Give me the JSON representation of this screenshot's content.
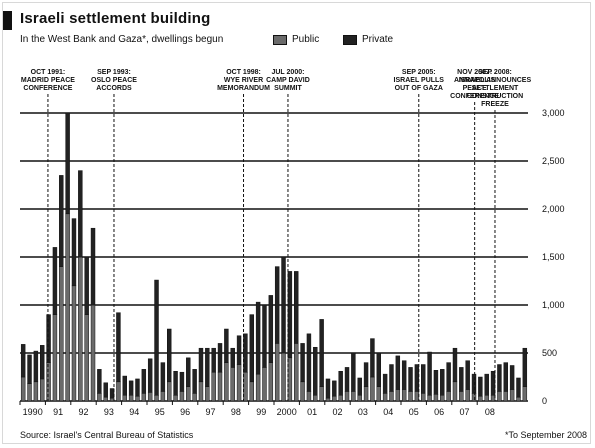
{
  "header": {
    "title": "Israeli settlement building",
    "subtitle": "In the West Bank and Gaza*, dwellings begun",
    "legend_public": "Public",
    "legend_private": "Private"
  },
  "footer": {
    "source": "Source: Israel's Central Bureau of Statistics",
    "footnote": "*To September 2008"
  },
  "chart_data": {
    "type": "bar",
    "title": "Israeli settlement building",
    "subtitle": "In the West Bank and Gaza*, dwellings begun",
    "xlabel": "",
    "ylabel": "",
    "ylim": [
      0,
      3000
    ],
    "yticks": [
      0,
      500,
      1000,
      1500,
      2000,
      2500,
      3000
    ],
    "ytick_labels": [
      "0",
      "500",
      "1,000",
      "1,500",
      "2,000",
      "2,500",
      "3,000"
    ],
    "grid": true,
    "legend_position": "top-right",
    "xtick_labels": [
      "1990",
      "91",
      "92",
      "93",
      "94",
      "95",
      "96",
      "97",
      "98",
      "99",
      "2000",
      "01",
      "02",
      "03",
      "04",
      "05",
      "06",
      "07",
      "08"
    ],
    "quarters_per_year": 4,
    "first_year": 1990,
    "series": [
      {
        "name": "Public",
        "color": "#6b6b6b",
        "values": [
          250,
          180,
          200,
          230,
          400,
          900,
          1400,
          1950,
          1200,
          1500,
          900,
          1000,
          80,
          40,
          30,
          200,
          60,
          60,
          50,
          80,
          90,
          60,
          100,
          200,
          60,
          100,
          150,
          80,
          200,
          150,
          300,
          300,
          400,
          350,
          380,
          300,
          200,
          280,
          350,
          400,
          600,
          500,
          450,
          600,
          200,
          100,
          60,
          150,
          30,
          50,
          60,
          100,
          100,
          60,
          150,
          250,
          150,
          80,
          100,
          120,
          120,
          100,
          100,
          80,
          60,
          70,
          60,
          100,
          200,
          100,
          120,
          80,
          50,
          60,
          60,
          100,
          100,
          120,
          40,
          150
        ]
      },
      {
        "name": "Private",
        "color": "#222222",
        "values": [
          340,
          300,
          320,
          350,
          500,
          700,
          950,
          1550,
          700,
          900,
          600,
          800,
          250,
          150,
          100,
          720,
          200,
          150,
          180,
          250,
          350,
          1200,
          300,
          550,
          250,
          200,
          300,
          250,
          350,
          400,
          250,
          300,
          350,
          200,
          300,
          400,
          700,
          750,
          650,
          700,
          800,
          1000,
          900,
          750,
          400,
          600,
          500,
          700,
          200,
          160,
          250,
          250,
          400,
          180,
          250,
          400,
          350,
          200,
          280,
          350,
          300,
          250,
          280,
          300,
          450,
          250,
          270,
          300,
          350,
          250,
          300,
          200,
          200,
          220,
          250,
          280,
          300,
          250,
          200,
          400
        ]
      }
    ],
    "totals_by_quarter": [
      590,
      480,
      520,
      580,
      900,
      1600,
      2350,
      3500,
      1900,
      2400,
      1500,
      1800,
      330,
      190,
      130,
      920,
      260,
      210,
      230,
      330,
      440,
      1260,
      400,
      750,
      310,
      300,
      450,
      330,
      550,
      550,
      550,
      600,
      750,
      550,
      680,
      700,
      900,
      1030,
      1000,
      1100,
      1400,
      1500,
      1350,
      1350,
      600,
      700,
      560,
      850,
      230,
      210,
      310,
      350,
      500,
      240,
      400,
      650,
      500,
      280,
      380,
      470,
      420,
      350,
      380,
      380,
      510,
      320,
      330,
      400,
      550,
      350,
      420,
      280,
      250,
      280,
      310,
      380,
      400,
      370,
      240,
      550
    ],
    "annotations": [
      {
        "year_pos": 1991.1,
        "text": [
          "OCT 1991:",
          "MADRID PEACE",
          "CONFERENCE"
        ]
      },
      {
        "year_pos": 1993.7,
        "text": [
          "SEP 1993:",
          "OSLO PEACE",
          "ACCORDS"
        ]
      },
      {
        "year_pos": 1998.8,
        "text": [
          "OCT 1998:",
          "WYE RIVER",
          "MEMORANDUM"
        ]
      },
      {
        "year_pos": 2000.55,
        "text": [
          "JUL 2000:",
          "CAMP DAVID",
          "SUMMIT"
        ]
      },
      {
        "year_pos": 2005.7,
        "text": [
          "SEP 2005:",
          "ISRAEL PULLS",
          "OUT OF GAZA"
        ]
      },
      {
        "year_pos": 2007.9,
        "text": [
          "NOV 2007:",
          "ANNAPOLIS",
          "PEACE",
          "CONFERENCE"
        ]
      },
      {
        "year_pos": 2008.7,
        "text": [
          "SEP 2008:",
          "ISRAEL ANNOUNCES",
          "SETTLEMENT",
          "CONSTRUCTION",
          "FREEZE"
        ]
      }
    ]
  }
}
